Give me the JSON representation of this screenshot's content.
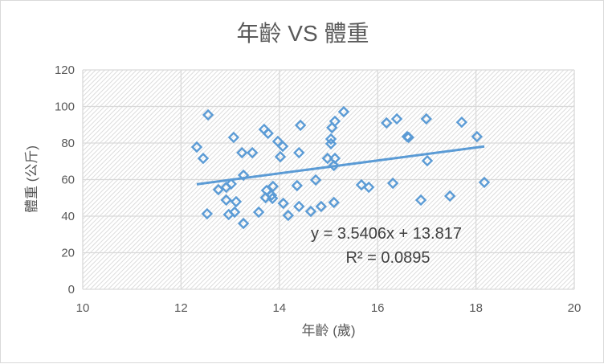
{
  "chart_data": {
    "type": "scatter",
    "title": "年齡 VS 體重",
    "xlabel": "年齡 (歲)",
    "ylabel": "體重 (公斤)",
    "xlim": [
      10,
      20
    ],
    "ylim": [
      0,
      120
    ],
    "xticks": [
      10,
      12,
      14,
      16,
      18,
      20
    ],
    "yticks": [
      0,
      20,
      40,
      60,
      80,
      100,
      120
    ],
    "grid": true,
    "series": [
      {
        "name": "體重",
        "color": "#5b9bd5",
        "marker": "diamond-open",
        "points": [
          [
            12.32,
            77.8
          ],
          [
            12.45,
            71.6
          ],
          [
            12.55,
            95.4
          ],
          [
            12.53,
            41.3
          ],
          [
            12.76,
            54.5
          ],
          [
            12.92,
            48.8
          ],
          [
            12.92,
            55.8
          ],
          [
            12.97,
            40.9
          ],
          [
            13.02,
            57.6
          ],
          [
            13.07,
            83.1
          ],
          [
            13.12,
            47.9
          ],
          [
            13.09,
            42.2
          ],
          [
            13.24,
            74.7
          ],
          [
            13.27,
            62.4
          ],
          [
            13.27,
            36.0
          ],
          [
            13.45,
            74.7
          ],
          [
            13.58,
            42.2
          ],
          [
            13.69,
            87.5
          ],
          [
            13.77,
            85.3
          ],
          [
            13.72,
            50.1
          ],
          [
            13.74,
            54.1
          ],
          [
            13.86,
            49.7
          ],
          [
            13.87,
            56.3
          ],
          [
            13.84,
            51.4
          ],
          [
            13.97,
            80.9
          ],
          [
            14.07,
            78.2
          ],
          [
            14.02,
            72.5
          ],
          [
            14.08,
            47.0
          ],
          [
            14.18,
            40.4
          ],
          [
            14.4,
            45.3
          ],
          [
            14.36,
            56.7
          ],
          [
            14.4,
            74.7
          ],
          [
            14.43,
            89.7
          ],
          [
            14.64,
            42.6
          ],
          [
            14.74,
            59.8
          ],
          [
            14.85,
            45.3
          ],
          [
            14.98,
            71.6
          ],
          [
            15.05,
            82.2
          ],
          [
            15.05,
            79.6
          ],
          [
            15.07,
            88.4
          ],
          [
            15.13,
            91.9
          ],
          [
            15.13,
            71.6
          ],
          [
            15.11,
            67.7
          ],
          [
            15.11,
            47.5
          ],
          [
            15.31,
            97.1
          ],
          [
            15.67,
            57.1
          ],
          [
            15.82,
            55.8
          ],
          [
            16.18,
            91.0
          ],
          [
            16.39,
            93.2
          ],
          [
            16.99,
            93.2
          ],
          [
            17.71,
            91.4
          ],
          [
            18.02,
            83.5
          ],
          [
            16.6,
            83.5
          ],
          [
            16.63,
            83.1
          ],
          [
            17.01,
            70.3
          ],
          [
            16.31,
            58.0
          ],
          [
            18.17,
            58.5
          ],
          [
            16.88,
            48.8
          ],
          [
            17.47,
            51.0
          ]
        ]
      }
    ],
    "trendline": {
      "type": "linear",
      "slope": 3.5406,
      "intercept": 13.817,
      "x_range": [
        12.32,
        18.17
      ],
      "color": "#5b9bd5"
    },
    "equation_label": "y = 3.5406x + 13.817",
    "r2_label": "R² = 0.0895"
  }
}
